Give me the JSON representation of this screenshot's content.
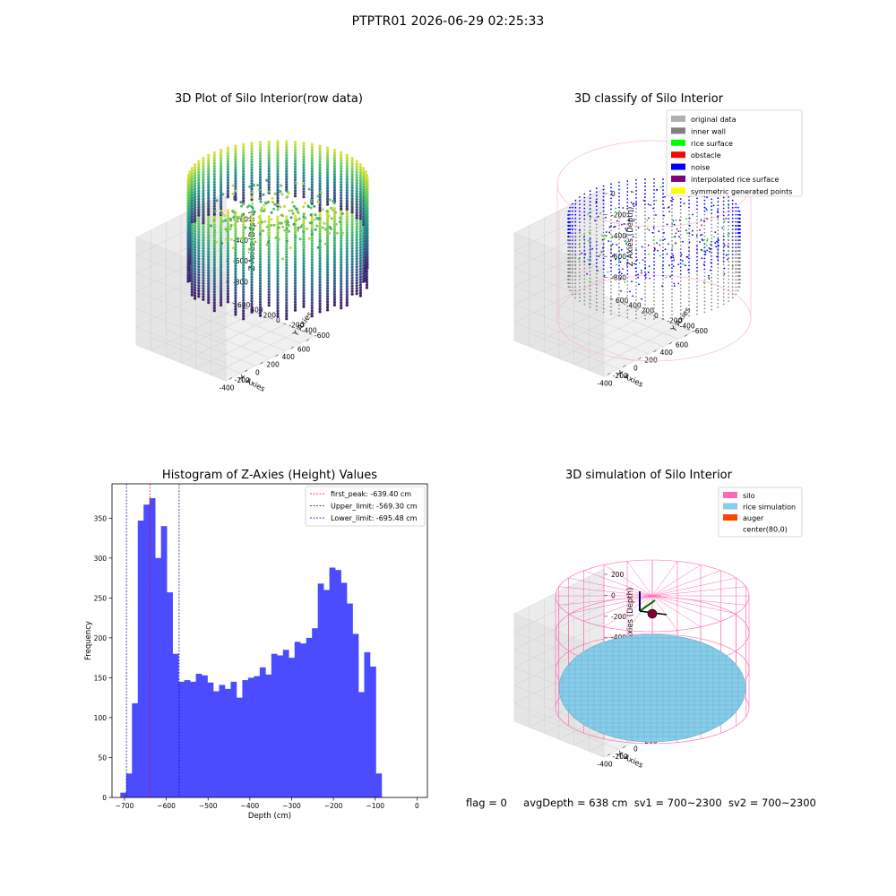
{
  "suptitle": "PTPTR01 2026-06-29 02:25:33",
  "status": {
    "flag": "flag = 0",
    "avg": "avgDepth = 638 cm",
    "sv1": "sv1 = 700~2300",
    "sv2": "sv2 = 700~2300"
  },
  "colors": {
    "hist_bar": "#4b4bff",
    "peak_line": "#ff0000",
    "limit_line": "#0000aa",
    "silo": "#ff69b4",
    "rice_sim": "#87ceeb",
    "auger": "#ff4500"
  },
  "chart_data": [
    {
      "type": "scatter",
      "title": "3D Plot of Silo Interior(row data)",
      "xlabel": "X Axies",
      "ylabel": "Y Axies",
      "zlabel": "Z Axies (Depth)",
      "x_ticks": [
        "-400",
        "-200",
        "0",
        "200",
        "400",
        "600"
      ],
      "y_ticks": [
        "-600",
        "-400",
        "-200",
        "0",
        "200",
        "400",
        "600"
      ],
      "z_ticks": [
        "0",
        "-200",
        "-400",
        "-600",
        "-800"
      ],
      "colormap": "viridis",
      "grid": true
    },
    {
      "type": "scatter",
      "title": "3D classify of Silo Interior",
      "xlabel": "X Axies",
      "ylabel": "Y Axies",
      "zlabel": "Z Axies (Depth)",
      "x_ticks": [
        "-400",
        "-200",
        "0",
        "200",
        "400",
        "600"
      ],
      "y_ticks": [
        "-600",
        "-400",
        "-200",
        "0",
        "200",
        "400",
        "600"
      ],
      "z_ticks": [
        "0",
        "-200",
        "-400",
        "-600",
        "-800"
      ],
      "legend_position": "top-right",
      "legend": [
        {
          "name": "original data",
          "color": "#b0b0b0"
        },
        {
          "name": "inner wall",
          "color": "#808080"
        },
        {
          "name": "rice surface",
          "color": "#00ff00"
        },
        {
          "name": "obstacle",
          "color": "#ff0000"
        },
        {
          "name": "noise",
          "color": "#0000ff"
        },
        {
          "name": "interpolated rice surface",
          "color": "#800080"
        },
        {
          "name": "symmetric generated points",
          "color": "#ffff00"
        }
      ],
      "grid": true
    },
    {
      "type": "bar",
      "title": "Histogram of Z-Axies (Height) Values",
      "xlabel": "Depth (cm)",
      "ylabel": "Frequency",
      "xlim": [
        -730,
        25
      ],
      "ylim": [
        0,
        393
      ],
      "x_ticks": [
        -700,
        -600,
        -500,
        -400,
        -300,
        -200,
        -100,
        0
      ],
      "y_ticks": [
        0,
        50,
        100,
        150,
        200,
        250,
        300,
        350
      ],
      "bin_start": -710,
      "bin_width": 13.9,
      "values": [
        6,
        30,
        118,
        347,
        367,
        375,
        300,
        340,
        257,
        180,
        145,
        147,
        145,
        155,
        153,
        144,
        133,
        141,
        136,
        145,
        125,
        147,
        150,
        152,
        163,
        154,
        180,
        178,
        185,
        175,
        195,
        193,
        200,
        212,
        268,
        260,
        288,
        285,
        269,
        243,
        205,
        132,
        182,
        164,
        30
      ],
      "vlines": [
        {
          "label": "first_peak: -639.40 cm",
          "x": -639.4,
          "color": "#ff0000"
        },
        {
          "label": "Upper_limit: -569.30 cm",
          "x": -569.3,
          "color": "#0000aa"
        },
        {
          "label": "Lower_limit: -695.48 cm",
          "x": -695.48,
          "color": "#0000aa"
        }
      ],
      "legend_position": "top-right"
    },
    {
      "type": "scatter",
      "title": "3D simulation of Silo Interior",
      "xlabel": "X Axies",
      "ylabel": "Y Axies",
      "zlabel": "Z Axies (Depth)",
      "x_ticks": [
        "-400",
        "-200",
        "0",
        "200",
        "400",
        "600"
      ],
      "y_ticks": [
        "-400",
        "-200",
        "0",
        "200",
        "400"
      ],
      "z_ticks": [
        "200",
        "0",
        "-200",
        "-400",
        "-600"
      ],
      "legend_position": "top-right",
      "legend": [
        {
          "name": "silo",
          "color": "#ff69b4"
        },
        {
          "name": "rice simulation",
          "color": "#87ceeb"
        },
        {
          "name": "auger",
          "color": "#ff4500"
        },
        {
          "name": "center(80,0)",
          "color": "none"
        }
      ],
      "grid": true
    }
  ]
}
